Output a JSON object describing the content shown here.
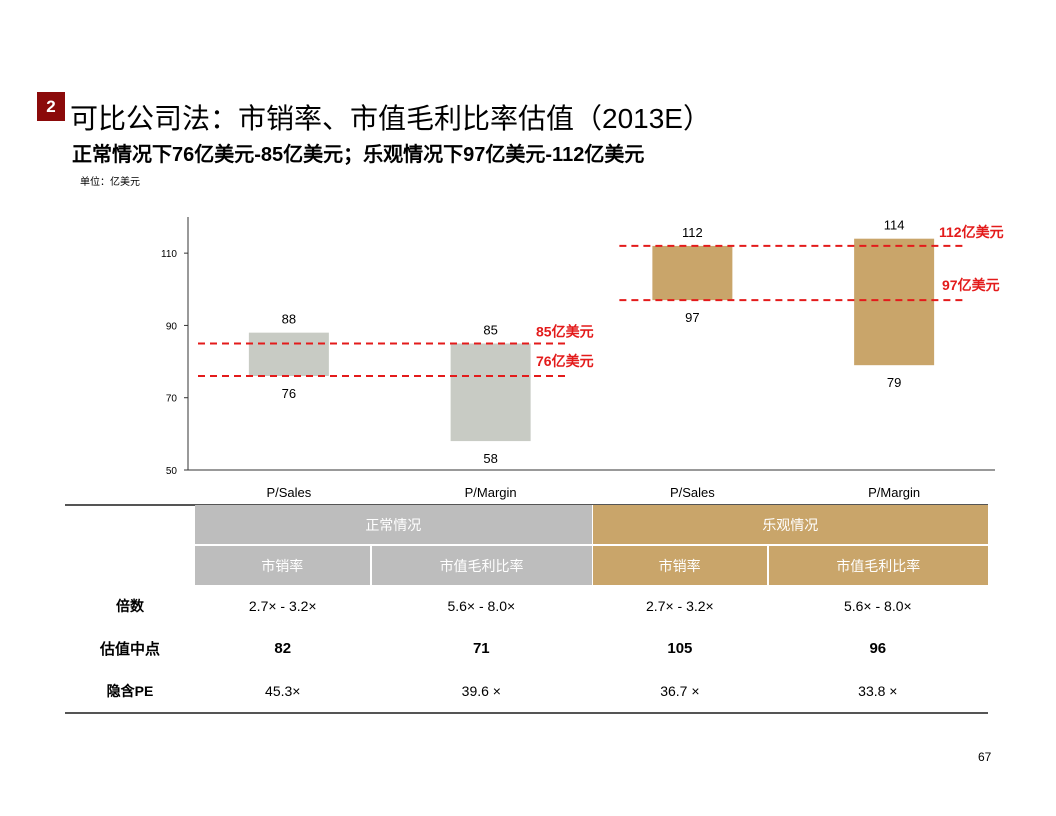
{
  "badge": "2",
  "title": "可比公司法：市销率、市值毛利比率估值（2013E）",
  "subtitle": "正常情况下76亿美元-85亿美元；乐观情况下97亿美元-112亿美元",
  "unit": "单位：亿美元",
  "chart_data": {
    "type": "floating-bar",
    "categories": [
      "P/Sales",
      "P/Margin",
      "P/Sales",
      "P/Margin"
    ],
    "series": [
      {
        "name": "range",
        "low": [
          76,
          58,
          97,
          79
        ],
        "high": [
          88,
          85,
          112,
          114
        ]
      }
    ],
    "low_labels": [
      "76",
      "58",
      "97",
      "79"
    ],
    "high_labels": [
      "88",
      "85",
      "112",
      "114"
    ],
    "colors": [
      "#c8cbc4",
      "#c8cbc4",
      "#c9a56a",
      "#c9a56a"
    ],
    "yticks": [
      "110",
      "90",
      "70",
      "50"
    ],
    "ytick_values": [
      110,
      90,
      70,
      50
    ],
    "ylim": [
      50,
      120
    ],
    "reference_lines": [
      {
        "value": 85,
        "label": "85亿美元",
        "span": [
          0,
          1
        ]
      },
      {
        "value": 76,
        "label": "76亿美元",
        "span": [
          0,
          1
        ]
      },
      {
        "value": 112,
        "label": "112亿美元",
        "span": [
          2,
          3
        ]
      },
      {
        "value": 97,
        "label": "97亿美元",
        "span": [
          2,
          3
        ]
      }
    ],
    "ref_color": "#e31b1b"
  },
  "table": {
    "groups": [
      "正常情况",
      "乐观情况"
    ],
    "subheaders": [
      "市销率",
      "市值毛利比率",
      "市销率",
      "市值毛利比率"
    ],
    "rows": [
      {
        "label": "倍数",
        "cells": [
          "2.7× - 3.2×",
          "5.6× - 8.0×",
          "2.7× - 3.2×",
          "5.6× - 8.0×"
        ]
      },
      {
        "label": "估值中点",
        "cells": [
          "82",
          "71",
          "105",
          "96"
        ]
      },
      {
        "label": "隐含PE",
        "cells": [
          "45.3×",
          "39.6 ×",
          "36.7 ×",
          "33.8 ×"
        ]
      }
    ]
  },
  "page_number": "67"
}
